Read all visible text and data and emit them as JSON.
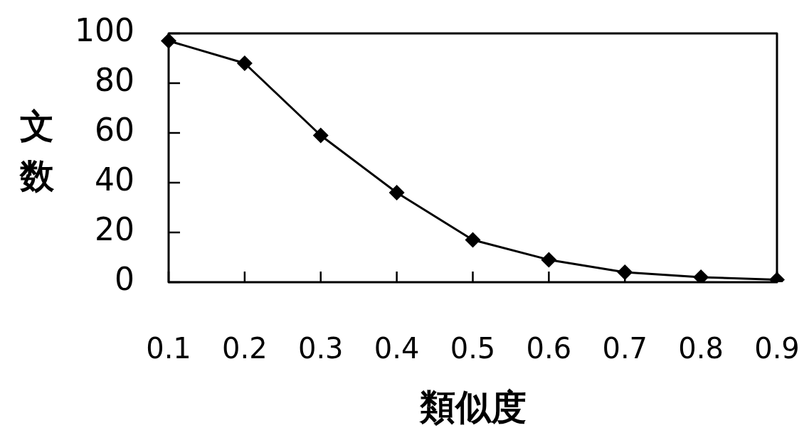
{
  "chart_data": {
    "type": "line",
    "xlabel": "類似度",
    "ylabel": "文数",
    "categories": [
      "0.1",
      "0.2",
      "0.3",
      "0.4",
      "0.5",
      "0.6",
      "0.7",
      "0.8",
      "0.9"
    ],
    "series": [
      {
        "color": "#000000",
        "values": [
          97,
          88,
          59,
          36,
          17,
          9,
          4,
          2,
          1
        ]
      }
    ],
    "ylim": [
      0,
      100
    ],
    "yticks": [
      0,
      20,
      40,
      60,
      80,
      100
    ],
    "marker": "diamond",
    "line_style": "solid"
  }
}
